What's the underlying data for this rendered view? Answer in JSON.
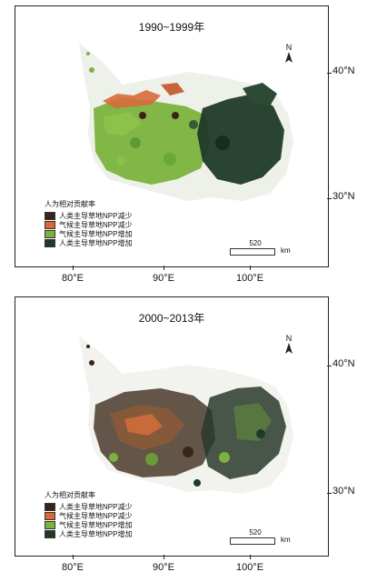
{
  "maps": [
    {
      "title": "1990~1999年",
      "north_label": "N",
      "legend_title": "人为相对贡献率",
      "legend": [
        {
          "label": "人类主导草地NPP减少",
          "color": "#3a2318"
        },
        {
          "label": "气候主导草地NPP减少",
          "color": "#d86a3a"
        },
        {
          "label": "气候主导草地NPP增加",
          "color": "#7bb23e"
        },
        {
          "label": "人类主导草地NPP增加",
          "color": "#1f3a2a"
        }
      ],
      "scale_value": "520",
      "scale_unit": "km",
      "lat_labels": [
        "40°N",
        "30°N"
      ],
      "lon_labels": [
        "80°E",
        "90°E",
        "100°E"
      ]
    },
    {
      "title": "2000~2013年",
      "north_label": "N",
      "legend_title": "人为相对贡献率",
      "legend": [
        {
          "label": "人类主导草地NPP减少",
          "color": "#3a2318"
        },
        {
          "label": "气候主导草地NPP减少",
          "color": "#d86a3a"
        },
        {
          "label": "气候主导草地NPP增加",
          "color": "#7bb23e"
        },
        {
          "label": "人类主导草地NPP增加",
          "color": "#1f3a2a"
        }
      ],
      "scale_value": "520",
      "scale_unit": "km",
      "lat_labels": [
        "40°N",
        "30°N"
      ],
      "lon_labels": [
        "80°E",
        "90°E",
        "100°E"
      ]
    }
  ]
}
